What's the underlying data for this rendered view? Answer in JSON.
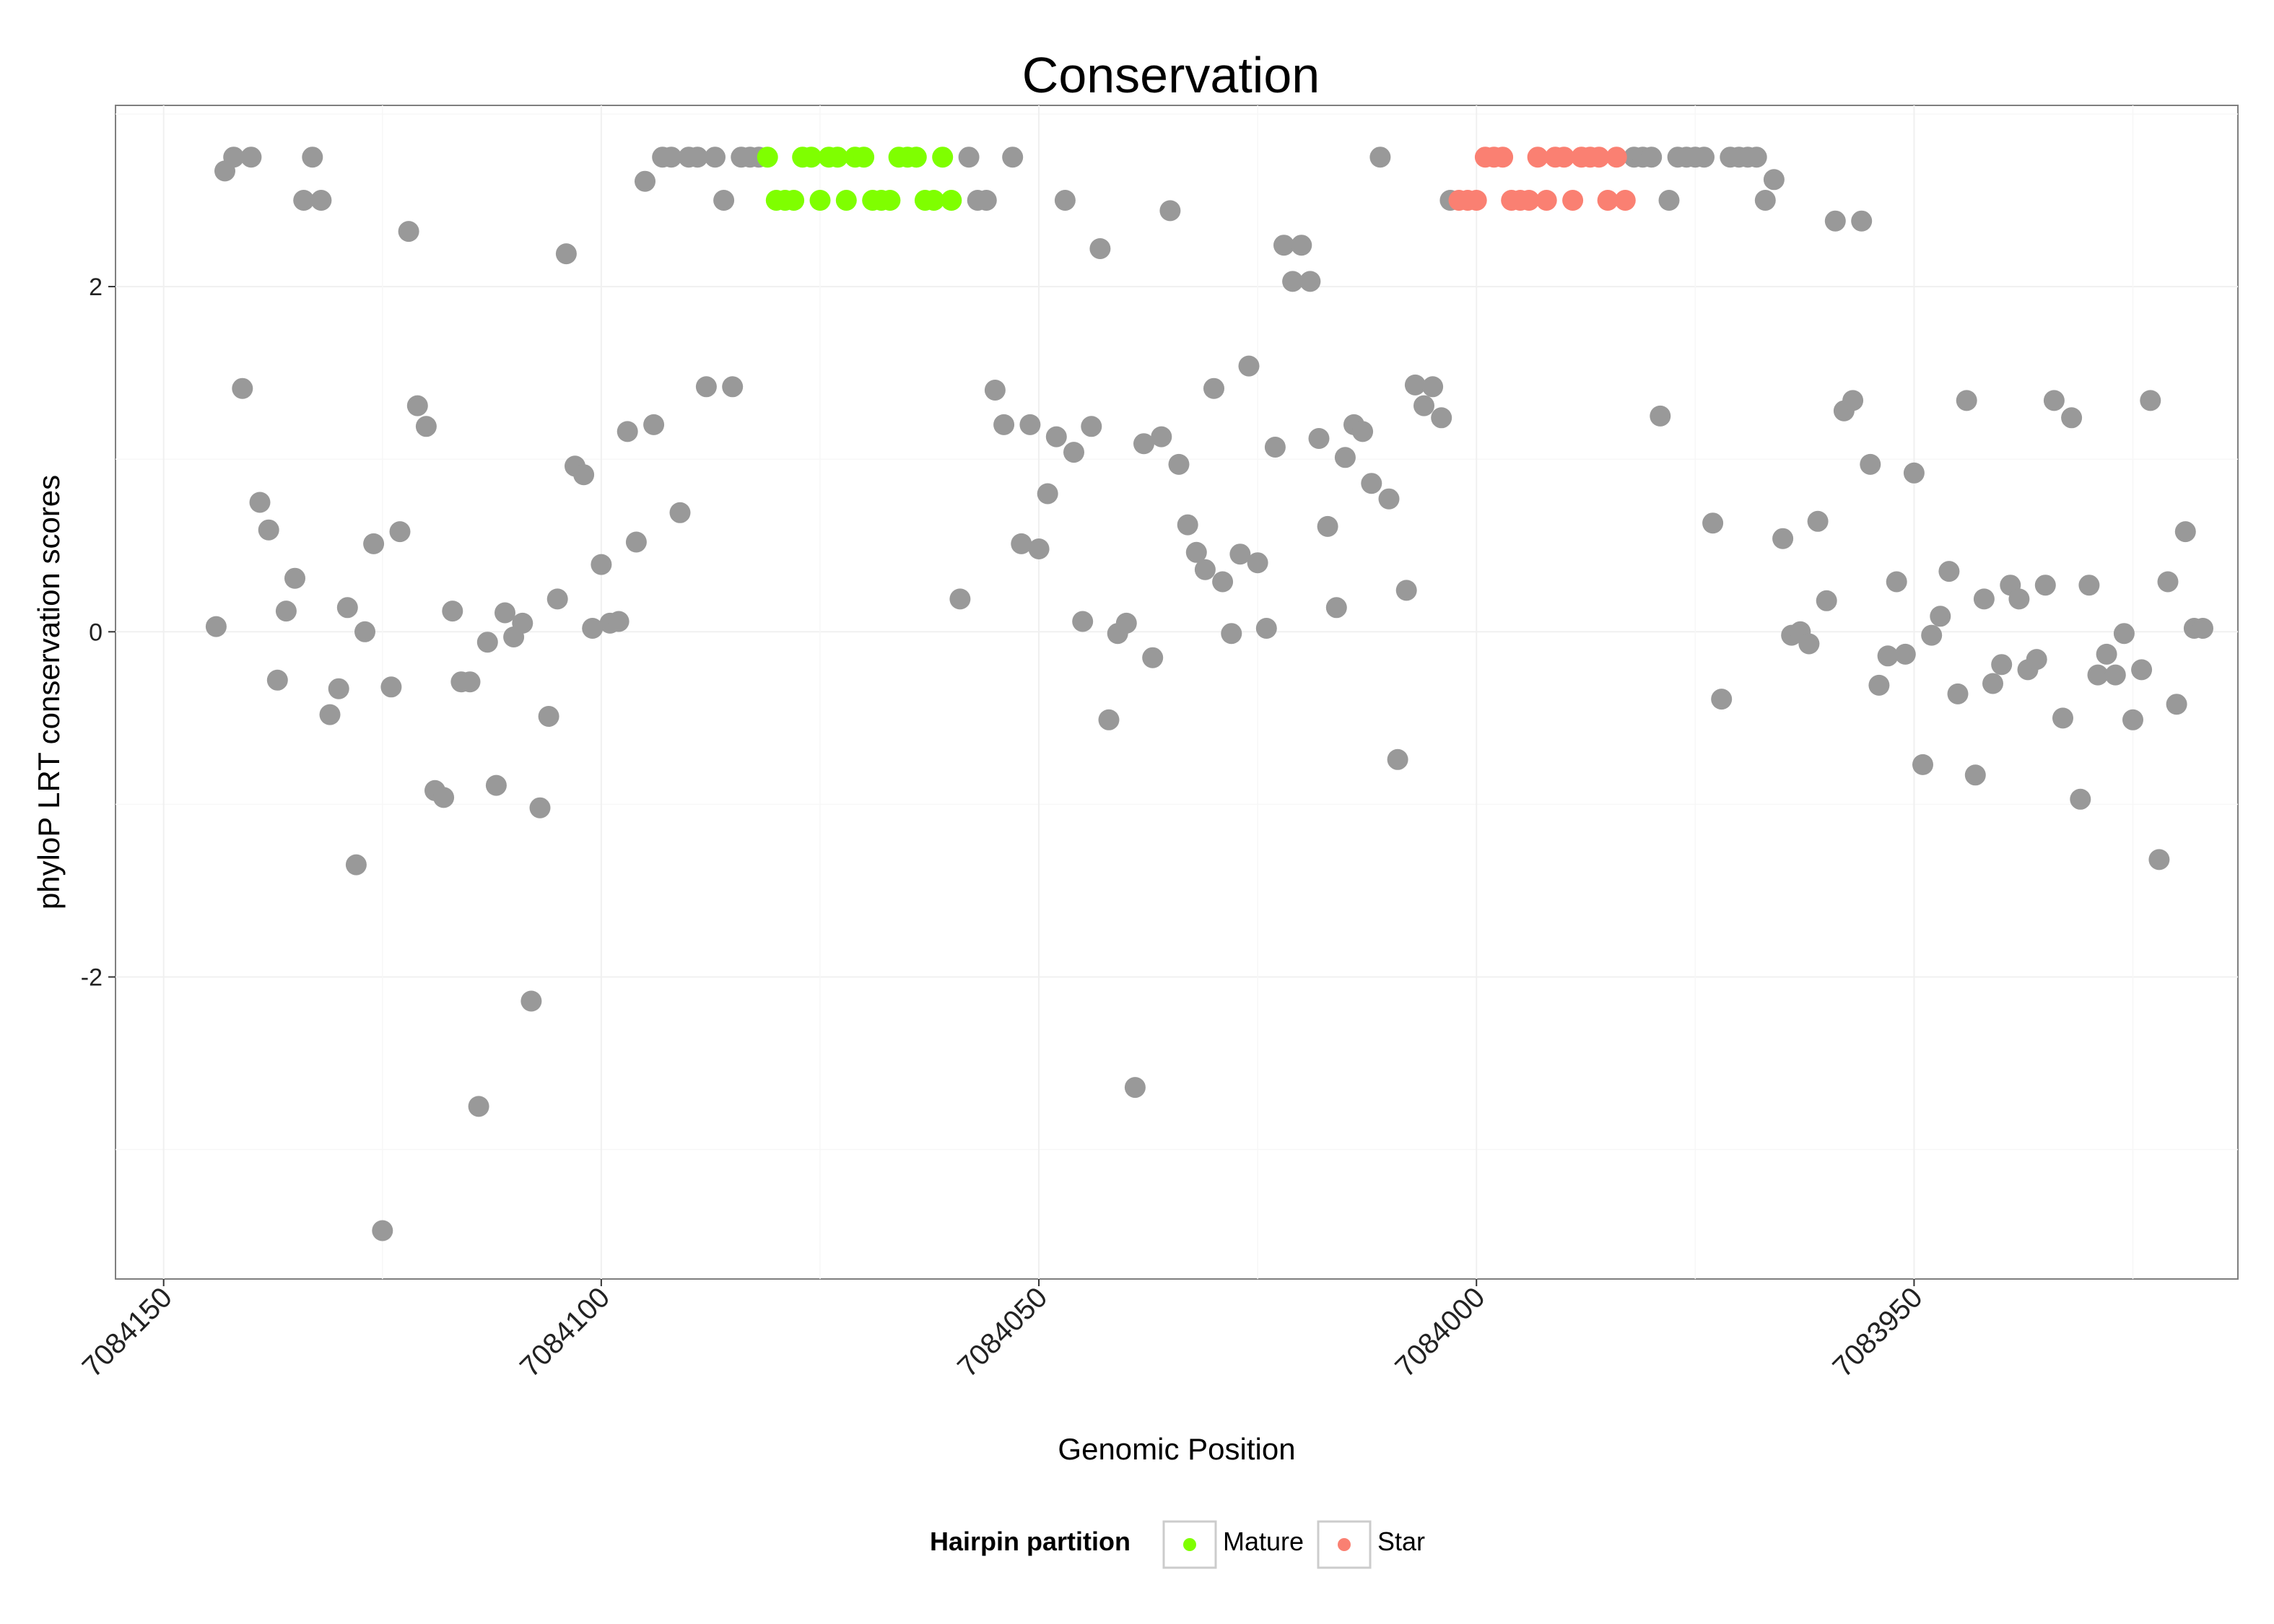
{
  "chart_data": {
    "type": "scatter",
    "title": "Conservation",
    "xlabel": "Genomic Position",
    "ylabel": "phyloP LRT conservation scores",
    "x_reversed": true,
    "xlim": [
      7084155.5,
      7083913
    ],
    "ylim": [
      -3.75,
      3.05
    ],
    "x_ticks": [
      7084150,
      7084100,
      7084050,
      7084000,
      7083950
    ],
    "x_tick_labels": [
      "7084150",
      "7084100",
      "7084050",
      "7084000",
      "7083950"
    ],
    "y_ticks": [
      -2,
      0,
      2
    ],
    "y_tick_labels": [
      "-2",
      "0",
      "2"
    ],
    "grid": true,
    "legend": {
      "title": "Hairpin partition",
      "position": "bottom",
      "entries": [
        {
          "name": "Mature",
          "color": "#7FFF00"
        },
        {
          "name": "Star",
          "color": "#FA8072"
        }
      ]
    },
    "colors": {
      "other": "#999999",
      "Mature": "#7FFF00",
      "Star": "#FA8072"
    },
    "series": [
      {
        "name": "Other",
        "color": "#999999",
        "points": [
          [
            7084144,
            0.03
          ],
          [
            7084143,
            2.67
          ],
          [
            7084142,
            2.75
          ],
          [
            7084141,
            1.41
          ],
          [
            7084140,
            2.75
          ],
          [
            7084139,
            0.75
          ],
          [
            7084138,
            0.59
          ],
          [
            7084137,
            -0.28
          ],
          [
            7084136,
            0.12
          ],
          [
            7084135,
            0.31
          ],
          [
            7084134,
            2.5
          ],
          [
            7084133,
            2.75
          ],
          [
            7084132,
            2.5
          ],
          [
            7084131,
            -0.48
          ],
          [
            7084130,
            -0.33
          ],
          [
            7084129,
            0.14
          ],
          [
            7084128,
            -1.35
          ],
          [
            7084127,
            0.0
          ],
          [
            7084126,
            0.51
          ],
          [
            7084125,
            -3.47
          ],
          [
            7084124,
            -0.32
          ],
          [
            7084123,
            0.58
          ],
          [
            7084122,
            2.32
          ],
          [
            7084121,
            1.31
          ],
          [
            7084120,
            1.19
          ],
          [
            7084119,
            -0.92
          ],
          [
            7084118,
            -0.96
          ],
          [
            7084117,
            0.12
          ],
          [
            7084116,
            -0.29
          ],
          [
            7084115,
            -0.29
          ],
          [
            7084114,
            -2.75
          ],
          [
            7084113,
            -0.06
          ],
          [
            7084112,
            -0.89
          ],
          [
            7084111,
            0.11
          ],
          [
            7084110,
            -0.03
          ],
          [
            7084109,
            0.05
          ],
          [
            7084108,
            -2.14
          ],
          [
            7084107,
            -1.02
          ],
          [
            7084106,
            -0.49
          ],
          [
            7084105,
            0.19
          ],
          [
            7084104,
            2.19
          ],
          [
            7084103,
            0.96
          ],
          [
            7084102,
            0.91
          ],
          [
            7084101,
            0.02
          ],
          [
            7084100,
            0.39
          ],
          [
            7084099,
            0.05
          ],
          [
            7084098,
            0.06
          ],
          [
            7084097,
            1.16
          ],
          [
            7084096,
            0.52
          ],
          [
            7084095,
            2.61
          ],
          [
            7084094,
            1.2
          ],
          [
            7084093,
            2.75
          ],
          [
            7084092,
            2.75
          ],
          [
            7084091,
            0.69
          ],
          [
            7084090,
            2.75
          ],
          [
            7084089,
            2.75
          ],
          [
            7084088,
            1.42
          ],
          [
            7084087,
            2.75
          ],
          [
            7084086,
            2.5
          ],
          [
            7084085,
            1.42
          ],
          [
            7084084,
            2.75
          ],
          [
            7084083,
            2.75
          ],
          [
            7084082,
            2.75
          ],
          [
            7084059,
            0.19
          ],
          [
            7084058,
            2.75
          ],
          [
            7084057,
            2.5
          ],
          [
            7084056,
            2.5
          ],
          [
            7084055,
            1.4
          ],
          [
            7084054,
            1.2
          ],
          [
            7084053,
            2.75
          ],
          [
            7084052,
            0.51
          ],
          [
            7084051,
            1.2
          ],
          [
            7084050,
            0.48
          ],
          [
            7084049,
            0.8
          ],
          [
            7084048,
            1.13
          ],
          [
            7084047,
            2.5
          ],
          [
            7084046,
            1.04
          ],
          [
            7084045,
            0.06
          ],
          [
            7084044,
            1.19
          ],
          [
            7084043,
            2.22
          ],
          [
            7084042,
            -0.51
          ],
          [
            7084041,
            -0.01
          ],
          [
            7084040,
            0.05
          ],
          [
            7084039,
            -2.64
          ],
          [
            7084038,
            1.09
          ],
          [
            7084037,
            -0.15
          ],
          [
            7084036,
            1.13
          ],
          [
            7084035,
            2.44
          ],
          [
            7084034,
            0.97
          ],
          [
            7084033,
            0.62
          ],
          [
            7084032,
            0.46
          ],
          [
            7084031,
            0.36
          ],
          [
            7084030,
            1.41
          ],
          [
            7084029,
            0.29
          ],
          [
            7084028,
            -0.01
          ],
          [
            7084027,
            0.45
          ],
          [
            7084026,
            1.54
          ],
          [
            7084025,
            0.4
          ],
          [
            7084024,
            0.02
          ],
          [
            7084023,
            1.07
          ],
          [
            7084022,
            2.24
          ],
          [
            7084021,
            2.03
          ],
          [
            7084020,
            2.24
          ],
          [
            7084019,
            2.03
          ],
          [
            7084018,
            1.12
          ],
          [
            7084017,
            0.61
          ],
          [
            7084016,
            0.14
          ],
          [
            7084015,
            1.01
          ],
          [
            7084014,
            1.2
          ],
          [
            7084013,
            1.16
          ],
          [
            7084012,
            0.86
          ],
          [
            7084011,
            2.75
          ],
          [
            7084010,
            0.77
          ],
          [
            7084009,
            -0.74
          ],
          [
            7084008,
            0.24
          ],
          [
            7084007,
            1.43
          ],
          [
            7084006,
            1.31
          ],
          [
            7084005,
            1.42
          ],
          [
            7084004,
            1.24
          ],
          [
            7084003,
            2.5
          ],
          [
            7083982,
            2.75
          ],
          [
            7083981,
            2.75
          ],
          [
            7083980,
            2.75
          ],
          [
            7083979,
            1.25
          ],
          [
            7083978,
            2.5
          ],
          [
            7083977,
            2.75
          ],
          [
            7083976,
            2.75
          ],
          [
            7083975,
            2.75
          ],
          [
            7083974,
            2.75
          ],
          [
            7083973,
            0.63
          ],
          [
            7083972,
            -0.39
          ],
          [
            7083971,
            2.75
          ],
          [
            7083970,
            2.75
          ],
          [
            7083969,
            2.75
          ],
          [
            7083968,
            2.75
          ],
          [
            7083967,
            2.5
          ],
          [
            7083966,
            2.62
          ],
          [
            7083965,
            0.54
          ],
          [
            7083964,
            -0.02
          ],
          [
            7083963,
            0.0
          ],
          [
            7083962,
            -0.07
          ],
          [
            7083961,
            0.64
          ],
          [
            7083960,
            0.18
          ],
          [
            7083959,
            2.38
          ],
          [
            7083958,
            1.28
          ],
          [
            7083957,
            1.34
          ],
          [
            7083956,
            2.38
          ],
          [
            7083955,
            0.97
          ],
          [
            7083954,
            -0.31
          ],
          [
            7083953,
            -0.14
          ],
          [
            7083952,
            0.29
          ],
          [
            7083951,
            -0.13
          ],
          [
            7083950,
            0.92
          ],
          [
            7083949,
            -0.77
          ],
          [
            7083948,
            -0.02
          ],
          [
            7083947,
            0.09
          ],
          [
            7083946,
            0.35
          ],
          [
            7083945,
            -0.36
          ],
          [
            7083944,
            1.34
          ],
          [
            7083943,
            -0.83
          ],
          [
            7083942,
            0.19
          ],
          [
            7083941,
            -0.3
          ],
          [
            7083940,
            -0.19
          ],
          [
            7083939,
            0.27
          ],
          [
            7083938,
            0.19
          ],
          [
            7083937,
            -0.22
          ],
          [
            7083936,
            -0.16
          ],
          [
            7083935,
            0.27
          ],
          [
            7083934,
            1.34
          ],
          [
            7083933,
            -0.5
          ],
          [
            7083932,
            1.24
          ],
          [
            7083931,
            -0.97
          ],
          [
            7083930,
            0.27
          ],
          [
            7083929,
            -0.25
          ],
          [
            7083928,
            -0.13
          ],
          [
            7083927,
            -0.25
          ],
          [
            7083926,
            -0.01
          ],
          [
            7083925,
            -0.51
          ],
          [
            7083924,
            -0.22
          ],
          [
            7083923,
            1.34
          ],
          [
            7083922,
            -1.32
          ],
          [
            7083921,
            0.29
          ],
          [
            7083920,
            -0.42
          ],
          [
            7083919,
            0.58
          ],
          [
            7083918,
            0.02
          ],
          [
            7083917,
            0.02
          ]
        ]
      },
      {
        "name": "Mature",
        "color": "#7FFF00",
        "points": [
          [
            7084081,
            2.75
          ],
          [
            7084080,
            2.5
          ],
          [
            7084079,
            2.5
          ],
          [
            7084078,
            2.5
          ],
          [
            7084077,
            2.75
          ],
          [
            7084076,
            2.75
          ],
          [
            7084075,
            2.5
          ],
          [
            7084074,
            2.75
          ],
          [
            7084073,
            2.75
          ],
          [
            7084072,
            2.5
          ],
          [
            7084071,
            2.75
          ],
          [
            7084070,
            2.75
          ],
          [
            7084069,
            2.5
          ],
          [
            7084068,
            2.5
          ],
          [
            7084067,
            2.5
          ],
          [
            7084066,
            2.75
          ],
          [
            7084065,
            2.75
          ],
          [
            7084064,
            2.75
          ],
          [
            7084063,
            2.5
          ],
          [
            7084062,
            2.5
          ],
          [
            7084061,
            2.75
          ],
          [
            7084060,
            2.5
          ]
        ]
      },
      {
        "name": "Star",
        "color": "#FA8072",
        "points": [
          [
            7084002,
            2.5
          ],
          [
            7084001,
            2.5
          ],
          [
            7084000,
            2.5
          ],
          [
            7083999,
            2.75
          ],
          [
            7083998,
            2.75
          ],
          [
            7083997,
            2.75
          ],
          [
            7083996,
            2.5
          ],
          [
            7083995,
            2.5
          ],
          [
            7083994,
            2.5
          ],
          [
            7083993,
            2.75
          ],
          [
            7083992,
            2.5
          ],
          [
            7083991,
            2.75
          ],
          [
            7083990,
            2.75
          ],
          [
            7083989,
            2.5
          ],
          [
            7083988,
            2.75
          ],
          [
            7083987,
            2.75
          ],
          [
            7083986,
            2.75
          ],
          [
            7083985,
            2.5
          ],
          [
            7083984,
            2.75
          ],
          [
            7083983,
            2.5
          ]
        ]
      }
    ]
  }
}
